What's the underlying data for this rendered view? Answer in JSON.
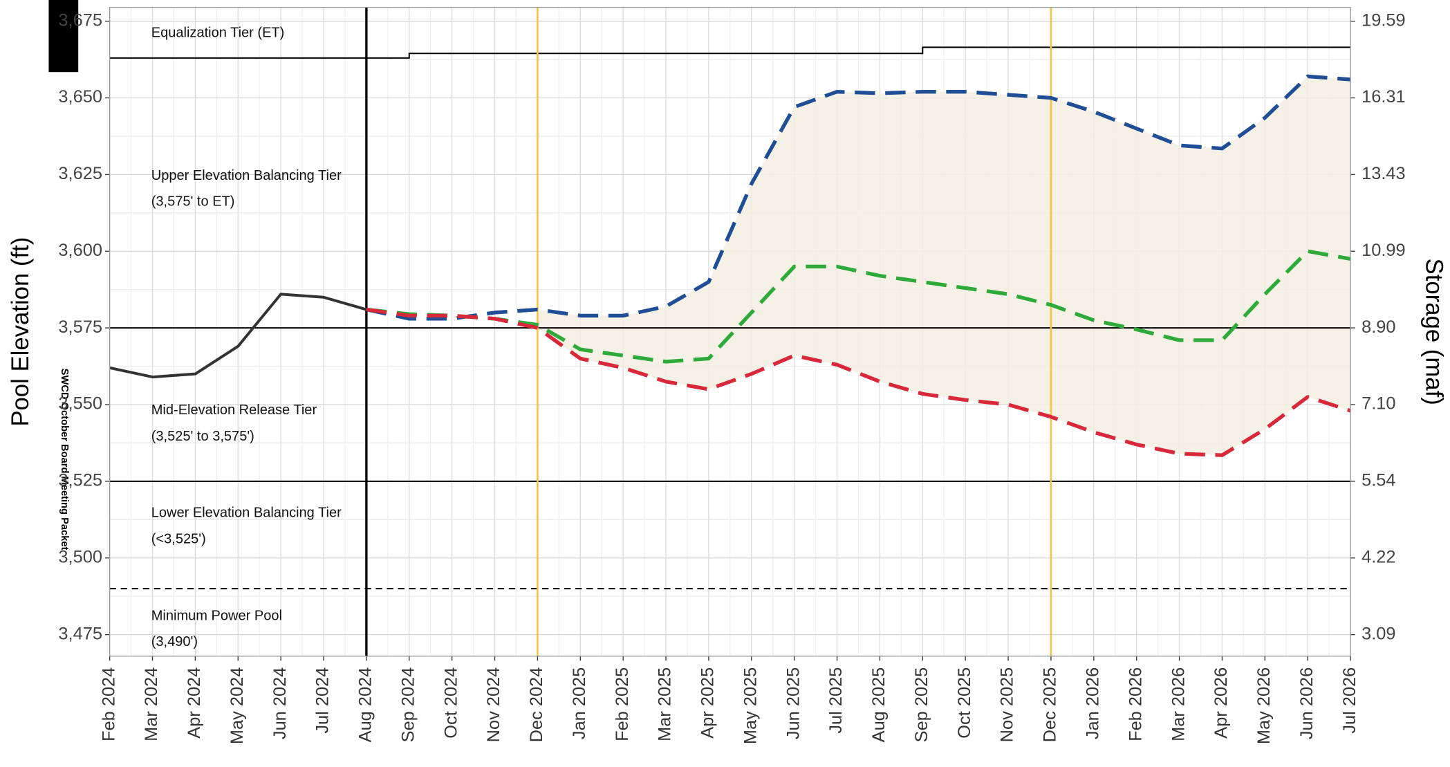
{
  "chart_data": {
    "type": "line",
    "y_label": "Pool Elevation (ft)",
    "y2_label": "Storage (maf)",
    "watermark": "SWCD October Board Meeting Packet",
    "categories": [
      "Feb 2024",
      "Mar 2024",
      "Apr 2024",
      "May 2024",
      "Jun 2024",
      "Jul 2024",
      "Aug 2024",
      "Sep 2024",
      "Oct 2024",
      "Nov 2024",
      "Dec 2024",
      "Jan 2025",
      "Feb 2025",
      "Mar 2025",
      "Apr 2025",
      "May 2025",
      "Jun 2025",
      "Jul 2025",
      "Aug 2025",
      "Sep 2025",
      "Oct 2025",
      "Nov 2025",
      "Dec 2025",
      "Jan 2026",
      "Feb 2026",
      "Mar 2026",
      "Apr 2026",
      "May 2026",
      "Jun 2026",
      "Jul 2026"
    ],
    "ylim": [
      3468,
      3679.5
    ],
    "yticks": [
      {
        "value": 3475,
        "label": "3,475"
      },
      {
        "value": 3500,
        "label": "3,500"
      },
      {
        "value": 3525,
        "label": "3,525"
      },
      {
        "value": 3550,
        "label": "3,550"
      },
      {
        "value": 3575,
        "label": "3,575"
      },
      {
        "value": 3600,
        "label": "3,600"
      },
      {
        "value": 3625,
        "label": "3,625"
      },
      {
        "value": 3650,
        "label": "3,650"
      },
      {
        "value": 3675,
        "label": "3,675"
      }
    ],
    "y2ticks": [
      3.09,
      4.22,
      5.54,
      {
        "value": 7.1,
        "label": "7.10"
      },
      {
        "value": 8.9,
        "label": "8.90"
      },
      10.99,
      13.43,
      16.31,
      19.59
    ],
    "grid": true,
    "series": [
      {
        "color": "#333333",
        "dash": false,
        "values": [
          3562,
          3559,
          3560,
          3569,
          3586,
          3585,
          3581,
          null,
          null,
          null,
          null,
          null,
          null,
          null,
          null,
          null,
          null,
          null,
          null,
          null,
          null,
          null,
          null,
          null,
          null,
          null,
          null,
          null,
          null,
          null
        ]
      },
      {
        "color": "#1f4e96",
        "dash": true,
        "values": [
          null,
          null,
          null,
          null,
          null,
          null,
          3581,
          3578,
          3578,
          3580,
          3581,
          3579,
          3579,
          3582,
          3590,
          3622,
          3647,
          3652,
          3651.5,
          3652,
          3652,
          3651,
          3650,
          3645.5,
          3640,
          3634.5,
          3633.5,
          3643.5,
          3657,
          3656
        ]
      },
      {
        "color": "#2eaa3a",
        "dash": true,
        "values": [
          null,
          null,
          null,
          null,
          null,
          null,
          3581,
          3579.5,
          3579,
          3578,
          3576,
          3568,
          3566,
          3564,
          3565,
          3580,
          3595,
          3595,
          3592,
          3590,
          3588,
          3586,
          3582.5,
          3577.5,
          3574.5,
          3571,
          3571,
          3586,
          3600,
          3597.5
        ]
      },
      {
        "color": "#d9283a",
        "dash": true,
        "values": [
          null,
          null,
          null,
          null,
          null,
          null,
          3581,
          3579,
          3579,
          3578,
          3575,
          3565,
          3562,
          3557.5,
          3555,
          3560,
          3566,
          3563,
          3557.5,
          3553.5,
          3551.5,
          3550,
          3546,
          3541,
          3537,
          3534,
          3533.5,
          3542,
          3552.5,
          3548
        ]
      }
    ],
    "et_line": [
      3663,
      3663,
      3663,
      3663,
      3663,
      3663,
      3663,
      3664.5,
      3664.5,
      3664.5,
      3664.5,
      3664.5,
      3664.5,
      3664.5,
      3664.5,
      3664.5,
      3664.5,
      3664.5,
      3664.5,
      3666.5,
      3666.5,
      3666.5,
      3666.5,
      3666.5,
      3666.5,
      3666.5,
      3666.5,
      3666.5,
      3666.5,
      3666.5
    ],
    "reference_lines": [
      {
        "value": 3575,
        "dash": false
      },
      {
        "value": 3525,
        "dash": false
      },
      {
        "value": 3490,
        "dash": true
      }
    ],
    "vertical_lines": [
      {
        "at": "Aug 2024",
        "color": "#000000"
      },
      {
        "at": "Dec 2024",
        "color": "#f5c542"
      },
      {
        "at": "Dec 2025",
        "color": "#f5c542"
      }
    ],
    "annotations": [
      {
        "text": "Equalization Tier (ET)",
        "y": 3671
      },
      {
        "text": "Upper Elevation Balancing Tier",
        "y": 3624.5
      },
      {
        "text": "(3,575' to ET)",
        "y": 3616
      },
      {
        "text": "Mid-Elevation Release Tier",
        "y": 3548
      },
      {
        "text": "(3,525' to 3,575')",
        "y": 3539.5
      },
      {
        "text": "Lower Elevation Balancing Tier",
        "y": 3514.5
      },
      {
        "text": "(<3,525')",
        "y": 3506
      },
      {
        "text": "Minimum Power Pool",
        "y": 3481
      },
      {
        "text": "(3,490')",
        "y": 3472.5
      }
    ]
  }
}
